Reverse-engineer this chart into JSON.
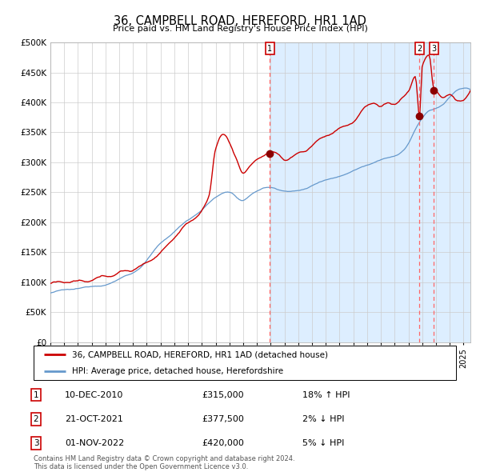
{
  "title": "36, CAMPBELL ROAD, HEREFORD, HR1 1AD",
  "subtitle": "Price paid vs. HM Land Registry's House Price Index (HPI)",
  "ylim": [
    0,
    500000
  ],
  "yticks": [
    0,
    50000,
    100000,
    150000,
    200000,
    250000,
    300000,
    350000,
    400000,
    450000,
    500000
  ],
  "ytick_labels": [
    "£0",
    "£50K",
    "£100K",
    "£150K",
    "£200K",
    "£250K",
    "£300K",
    "£350K",
    "£400K",
    "£450K",
    "£500K"
  ],
  "xlim_start": 1995.0,
  "xlim_end": 2025.5,
  "sale_prices": [
    315000,
    377500,
    420000
  ],
  "sale_labels": [
    "1",
    "2",
    "3"
  ],
  "sale_date_floats": [
    2010.94,
    2021.81,
    2022.84
  ],
  "shaded_start": 2010.94,
  "legend_line1": "36, CAMPBELL ROAD, HEREFORD, HR1 1AD (detached house)",
  "legend_line2": "HPI: Average price, detached house, Herefordshire",
  "table_rows": [
    [
      "1",
      "10-DEC-2010",
      "£315,000",
      "18% ↑ HPI"
    ],
    [
      "2",
      "21-OCT-2021",
      "£377,500",
      "2% ↓ HPI"
    ],
    [
      "3",
      "01-NOV-2022",
      "£420,000",
      "5% ↓ HPI"
    ]
  ],
  "footer": "Contains HM Land Registry data © Crown copyright and database right 2024.\nThis data is licensed under the Open Government Licence v3.0.",
  "red_line_color": "#cc0000",
  "blue_line_color": "#6699cc",
  "shaded_color": "#ddeeff",
  "grid_color": "#cccccc",
  "background_color": "#ffffff"
}
